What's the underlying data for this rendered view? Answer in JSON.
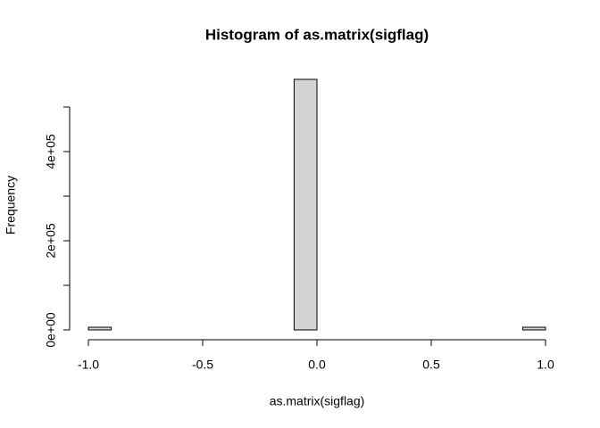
{
  "chart_data": {
    "type": "histogram",
    "title": "Histogram of as.matrix(sigflag)",
    "x_label": "as.matrix(sigflag)",
    "y_label": "Frequency",
    "bins": [
      -1.0,
      -0.9,
      -0.8,
      -0.7,
      -0.6,
      -0.5,
      -0.4,
      -0.3,
      -0.2,
      -0.1,
      0.0,
      0.1,
      0.2,
      0.3,
      0.4,
      0.5,
      0.6,
      0.7,
      0.8,
      0.9,
      1.0
    ],
    "counts": [
      6000,
      0,
      0,
      0,
      0,
      0,
      0,
      0,
      0,
      562000,
      0,
      0,
      0,
      0,
      0,
      0,
      0,
      0,
      0,
      6000
    ],
    "color": "#d3d3d3",
    "xlim": [
      -1,
      1
    ],
    "ylim": [
      0,
      562000
    ],
    "xticks": [
      {
        "value": -1,
        "label": "-1.0"
      },
      -0.5,
      {
        "value": 0,
        "label": "0.0"
      },
      0.5,
      {
        "value": 1,
        "label": "1.0"
      }
    ],
    "yticks": [
      {
        "value": 0,
        "label": "0e+00"
      },
      {
        "value": 100000,
        "label": null
      },
      {
        "value": 200000,
        "label": "2e+05"
      },
      {
        "value": 300000,
        "label": null
      },
      {
        "value": 400000,
        "label": "4e+05"
      },
      {
        "value": 500000,
        "label": null
      }
    ]
  }
}
